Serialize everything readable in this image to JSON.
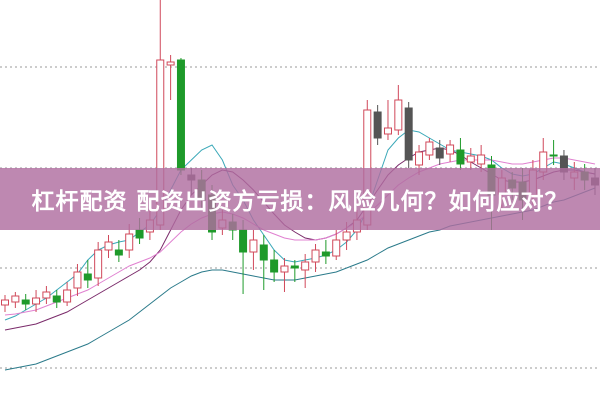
{
  "title": "杠杆配资 配资出资方亏损：风险几何？如何应对？",
  "colors": {
    "up": "#d0485a",
    "down": "#1e9a2a",
    "down_dark": "#555555",
    "banner": "#b06ea0",
    "grid": "#999999"
  },
  "chart_data": {
    "type": "candlestick",
    "title": "杠杆配资 配资出资方亏损：风险几何？如何应对？",
    "xlabel": "",
    "ylabel": "",
    "ylim": [
      0,
      400
    ],
    "grid": true,
    "candles": [
      [
        95,
        100,
        105,
        88
      ],
      [
        98,
        104,
        108,
        92
      ],
      [
        100,
        96,
        106,
        90
      ],
      [
        96,
        102,
        110,
        88
      ],
      [
        102,
        108,
        114,
        96
      ],
      [
        104,
        98,
        110,
        92
      ],
      [
        98,
        110,
        118,
        94
      ],
      [
        112,
        128,
        136,
        104
      ],
      [
        126,
        120,
        140,
        112
      ],
      [
        122,
        150,
        158,
        114
      ],
      [
        150,
        158,
        165,
        142
      ],
      [
        150,
        145,
        160,
        138
      ],
      [
        150,
        166,
        176,
        142
      ],
      [
        170,
        162,
        182,
        156
      ],
      [
        168,
        180,
        190,
        160
      ],
      [
        175,
        340,
        400,
        170
      ],
      [
        335,
        338,
        345,
        300
      ],
      [
        340,
        230,
        342,
        225
      ],
      [
        225,
        220,
        232,
        205
      ],
      [
        220,
        200,
        230,
        190
      ],
      [
        205,
        168,
        215,
        160
      ],
      [
        172,
        180,
        190,
        165
      ],
      [
        178,
        170,
        186,
        160
      ],
      [
        170,
        148,
        180,
        106
      ],
      [
        148,
        160,
        170,
        130
      ],
      [
        155,
        140,
        165,
        110
      ],
      [
        140,
        128,
        150,
        118
      ],
      [
        128,
        134,
        142,
        108
      ],
      [
        134,
        132,
        140,
        118
      ],
      [
        130,
        138,
        146,
        112
      ],
      [
        138,
        150,
        156,
        128
      ],
      [
        148,
        144,
        160,
        136
      ],
      [
        144,
        160,
        170,
        140
      ],
      [
        160,
        168,
        178,
        150
      ],
      [
        168,
        180,
        190,
        160
      ],
      [
        175,
        290,
        300,
        170
      ],
      [
        288,
        262,
        295,
        255
      ],
      [
        266,
        272,
        300,
        260
      ],
      [
        270,
        300,
        315,
        265
      ],
      [
        292,
        240,
        298,
        232
      ],
      [
        235,
        248,
        255,
        225
      ],
      [
        245,
        258,
        262,
        240
      ],
      [
        252,
        242,
        260,
        235
      ],
      [
        246,
        255,
        260,
        238
      ],
      [
        250,
        236,
        262,
        230
      ],
      [
        238,
        244,
        252,
        230
      ],
      [
        236,
        245,
        255,
        228
      ],
      [
        235,
        205,
        244,
        170
      ],
      [
        206,
        222,
        230,
        190
      ],
      [
        220,
        212,
        228,
        200
      ],
      [
        218,
        200,
        232,
        180
      ],
      [
        205,
        230,
        240,
        195
      ],
      [
        228,
        248,
        262,
        220
      ],
      [
        245,
        244,
        260,
        235
      ],
      [
        244,
        228,
        250,
        220
      ],
      [
        222,
        228,
        238,
        210
      ],
      [
        228,
        220,
        236,
        210
      ],
      [
        222,
        215,
        232,
        205
      ]
    ],
    "moving_averages": [
      {
        "color": "#3aa8b8",
        "values": [
          80,
          84,
          90,
          96,
          102,
          110,
          118,
          126,
          140,
          150,
          155,
          158,
          160,
          168,
          175,
          190,
          210,
          230,
          240,
          250,
          255,
          240,
          215,
          200,
          180,
          165,
          150,
          140,
          138,
          140,
          142,
          145,
          150,
          158,
          170,
          190,
          220,
          250,
          262,
          270,
          268,
          262,
          256,
          250,
          248,
          246,
          244,
          240,
          232,
          226,
          224,
          226,
          232,
          238,
          236,
          232,
          228,
          226
        ]
      },
      {
        "color": "#7a2a6a",
        "values": [
          70,
          72,
          74,
          76,
          80,
          84,
          88,
          94,
          100,
          106,
          112,
          118,
          124,
          130,
          138,
          150,
          170,
          190,
          205,
          215,
          225,
          230,
          228,
          220,
          210,
          198,
          186,
          175,
          168,
          162,
          160,
          162,
          166,
          172,
          180,
          195,
          210,
          225,
          235,
          242,
          248,
          250,
          252,
          250,
          245,
          238,
          232,
          226,
          220,
          218,
          218,
          220,
          224,
          228,
          230,
          230,
          228,
          226
        ]
      },
      {
        "color": "#e080d0",
        "values": [
          85,
          86,
          88,
          90,
          94,
          98,
          102,
          106,
          110,
          116,
          122,
          128,
          134,
          138,
          142,
          148,
          158,
          168,
          176,
          182,
          186,
          188,
          186,
          182,
          176,
          170,
          166,
          162,
          160,
          160,
          160,
          162,
          166,
          172,
          178,
          186,
          195,
          205,
          215,
          222,
          228,
          232,
          236,
          238,
          240,
          240,
          240,
          240,
          238,
          236,
          236,
          238,
          240,
          242,
          242,
          240,
          238,
          236
        ]
      },
      {
        "color": "#2a7a8a",
        "values": [
          30,
          32,
          34,
          36,
          40,
          44,
          48,
          52,
          56,
          62,
          68,
          74,
          80,
          88,
          96,
          104,
          112,
          118,
          124,
          128,
          130,
          130,
          128,
          126,
          124,
          122,
          120,
          120,
          120,
          122,
          124,
          126,
          128,
          132,
          136,
          140,
          146,
          152,
          156,
          160,
          164,
          168,
          170,
          174,
          176,
          178,
          180,
          182,
          184,
          186,
          188,
          190,
          194,
          198,
          200,
          204,
          208,
          212
        ]
      }
    ]
  }
}
